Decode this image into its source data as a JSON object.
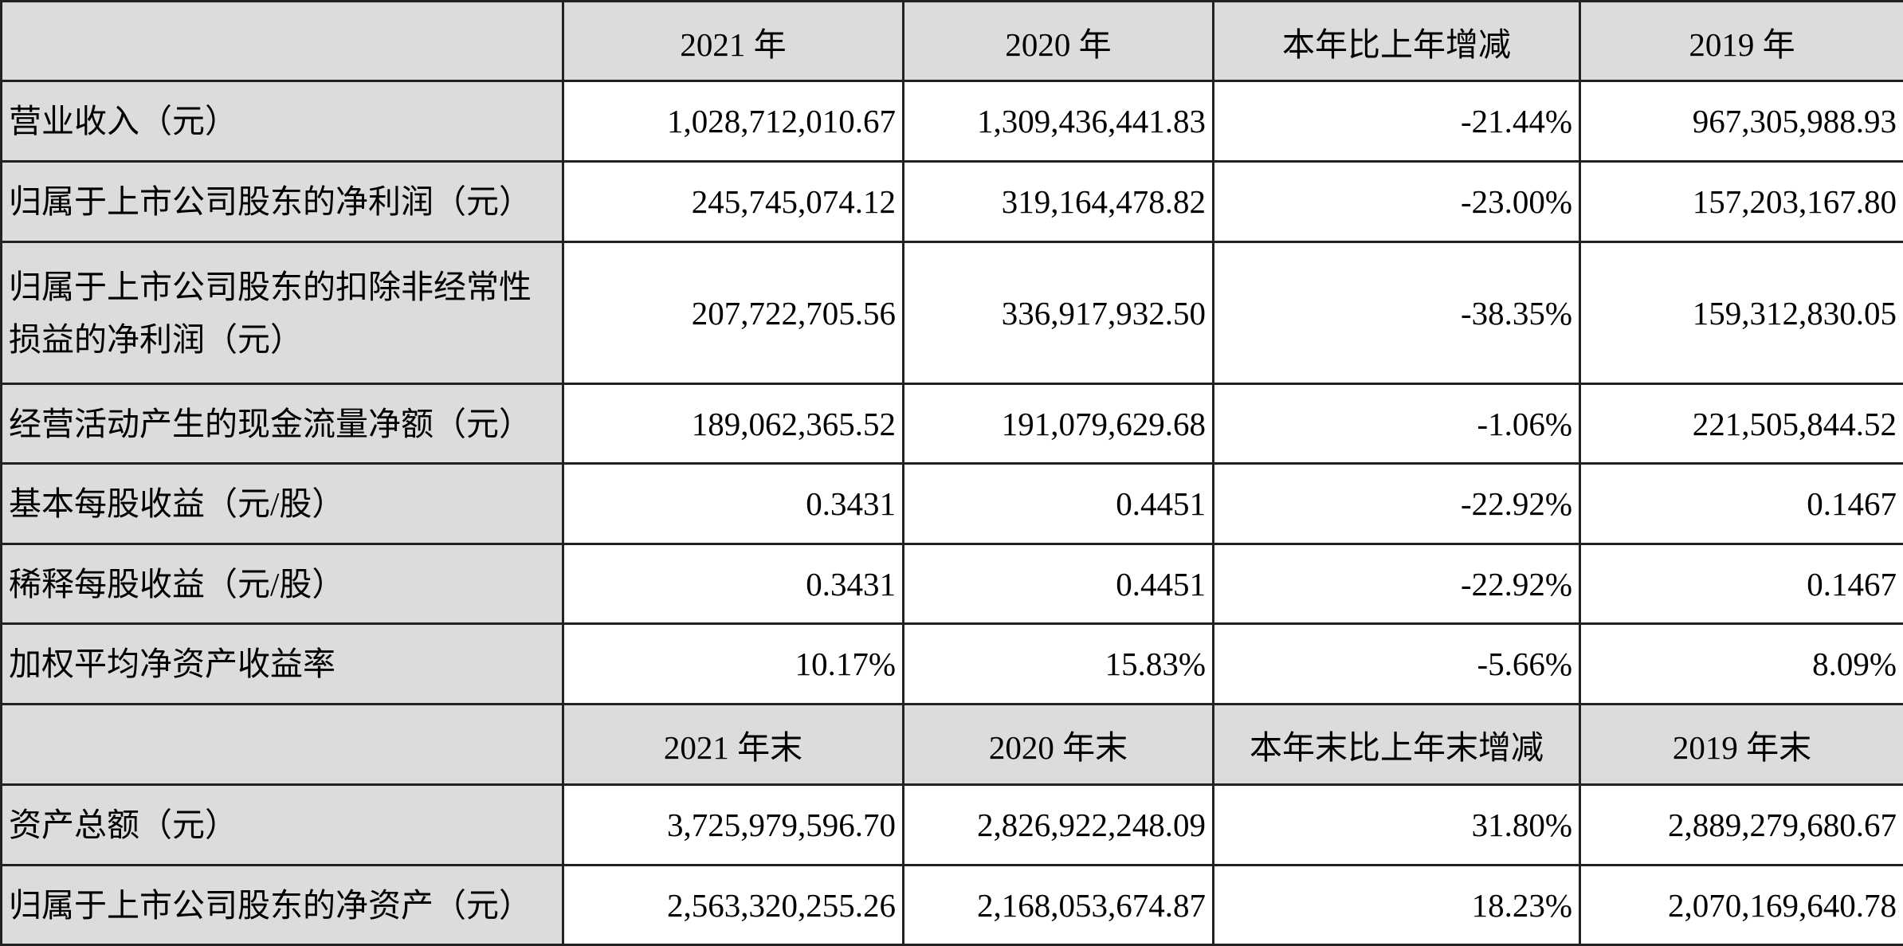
{
  "header1": [
    "",
    "2021 年",
    "2020 年",
    "本年比上年增减",
    "2019 年"
  ],
  "rows1": [
    {
      "label": "营业收入（元）",
      "values": [
        "1,028,712,010.67",
        "1,309,436,441.83",
        "-21.44%",
        "967,305,988.93"
      ]
    },
    {
      "label": "归属于上市公司股东的净利润（元）",
      "values": [
        "245,745,074.12",
        "319,164,478.82",
        "-23.00%",
        "157,203,167.80"
      ]
    },
    {
      "label": "归属于上市公司股东的扣除非经常性损益的净利润（元）",
      "values": [
        "207,722,705.56",
        "336,917,932.50",
        "-38.35%",
        "159,312,830.05"
      ]
    },
    {
      "label": "经营活动产生的现金流量净额（元）",
      "values": [
        "189,062,365.52",
        "191,079,629.68",
        "-1.06%",
        "221,505,844.52"
      ]
    },
    {
      "label": "基本每股收益（元/股）",
      "values": [
        "0.3431",
        "0.4451",
        "-22.92%",
        "0.1467"
      ]
    },
    {
      "label": "稀释每股收益（元/股）",
      "values": [
        "0.3431",
        "0.4451",
        "-22.92%",
        "0.1467"
      ]
    },
    {
      "label": "加权平均净资产收益率",
      "values": [
        "10.17%",
        "15.83%",
        "-5.66%",
        "8.09%"
      ]
    }
  ],
  "header2": [
    "",
    "2021 年末",
    "2020 年末",
    "本年末比上年末增减",
    "2019 年末"
  ],
  "rows2": [
    {
      "label": "资产总额（元）",
      "values": [
        "3,725,979,596.70",
        "2,826,922,248.09",
        "31.80%",
        "2,889,279,680.67"
      ]
    },
    {
      "label": "归属于上市公司股东的净资产（元）",
      "values": [
        "2,563,320,255.26",
        "2,168,053,674.87",
        "18.23%",
        "2,070,169,640.78"
      ]
    }
  ]
}
